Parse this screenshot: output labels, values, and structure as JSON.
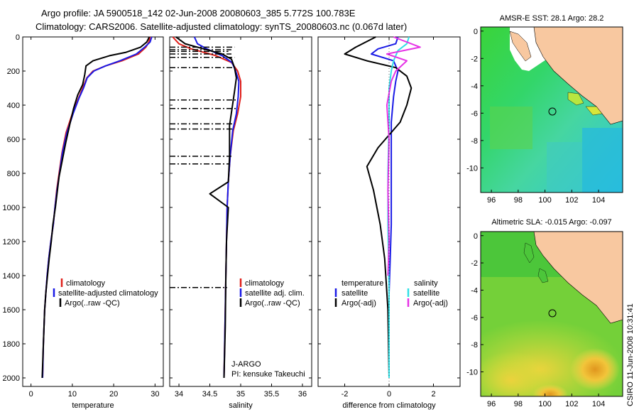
{
  "title": {
    "line1": "Argo profile: JA 5900518_142 02-Jun-2008 20080603_385 5.772S 100.783E",
    "line2": "Climatology: CARS2006. Satellite-adjusted climatology: synTS_20080603.nc (0.067d later)"
  },
  "colors": {
    "climatology": "#e0201b",
    "satellite": "#1a1ae6",
    "argo": "#000000",
    "sat_salinity": "#33e0e6",
    "argo_adj_salinity": "#e633e6"
  },
  "depth_axis": {
    "ylim": [
      0,
      2050
    ],
    "ticks": [
      0,
      200,
      400,
      600,
      800,
      1000,
      1200,
      1400,
      1600,
      1800,
      2000
    ]
  },
  "panels": {
    "temperature": {
      "xlabel": "temperature",
      "xlim": [
        -2,
        32
      ],
      "xticks": [
        0,
        10,
        20,
        30
      ],
      "legend": [
        "climatology",
        "satellite-adjusted climatology",
        "Argo(..raw -QC)"
      ]
    },
    "salinity": {
      "xlabel": "salinity",
      "xlim": [
        33.85,
        36.15
      ],
      "xticks": [
        34,
        34.5,
        35,
        35.5,
        36
      ],
      "legend": [
        "climatology",
        "satellite adj. clim.",
        "Argo(..raw -QC)"
      ],
      "annotation_line1": "J-ARGO",
      "annotation_line2": "PI: kensuke Takeuchi"
    },
    "difference": {
      "xlabel": "difference from climatology",
      "xlim": [
        -3.2,
        3.2
      ],
      "xticks": [
        -2,
        0,
        2
      ],
      "legend_temperature_head": "temperature",
      "legend_salinity_head": "salinity",
      "legend_temperature": [
        "satellite",
        "Argo(-adj)"
      ],
      "legend_salinity": [
        "satellite",
        "Argo(-adj)"
      ]
    }
  },
  "chart_data": [
    {
      "type": "line",
      "id": "temperature",
      "xlabel": "temperature",
      "ylabel": "",
      "xlim": [
        -2,
        32
      ],
      "ylim": [
        0,
        2050
      ],
      "y_reversed": true,
      "series": [
        {
          "name": "climatology",
          "x": [
            28.8,
            28.5,
            27.8,
            26,
            22,
            18,
            15,
            13.5,
            12.5,
            11.5,
            10,
            8.5,
            7.5,
            6.8,
            6.2,
            5.8,
            5.4,
            4.8,
            4.3,
            3.9,
            3.6,
            3.3,
            3.0,
            2.8
          ],
          "y": [
            0,
            30,
            60,
            100,
            140,
            170,
            200,
            240,
            300,
            360,
            450,
            560,
            680,
            800,
            900,
            1000,
            1100,
            1200,
            1300,
            1400,
            1500,
            1600,
            1800,
            2000
          ]
        },
        {
          "name": "satellite-adjusted climatology",
          "x": [
            29.2,
            28.8,
            27.5,
            25.5,
            21.5,
            18,
            15.2,
            13.6,
            12.7,
            11.6,
            10.2,
            8.7,
            7.6,
            6.9,
            6.3,
            5.8,
            5.4,
            4.8,
            4.3,
            3.9,
            3.6,
            3.3,
            3.0,
            2.8
          ],
          "y": [
            0,
            30,
            60,
            100,
            140,
            170,
            200,
            240,
            300,
            360,
            450,
            560,
            680,
            800,
            900,
            1000,
            1100,
            1200,
            1300,
            1400,
            1500,
            1600,
            1800,
            2000
          ]
        },
        {
          "name": "Argo(..raw -QC)",
          "x": [
            28.6,
            28,
            26.5,
            23,
            19,
            15,
            13.3,
            13,
            12.5,
            11.3,
            10.3,
            9.5,
            8.4,
            7.6,
            6.8,
            6.3,
            5.9,
            5.3,
            4.9,
            4.4,
            4.0,
            3.6,
            3.3,
            3.0,
            2.7
          ],
          "y": [
            0,
            30,
            60,
            90,
            110,
            140,
            170,
            220,
            280,
            340,
            420,
            500,
            620,
            720,
            820,
            920,
            1000,
            1100,
            1200,
            1300,
            1400,
            1500,
            1600,
            1800,
            2000
          ]
        }
      ]
    },
    {
      "type": "line",
      "id": "salinity",
      "xlabel": "salinity",
      "ylabel": "",
      "xlim": [
        33.85,
        36.15
      ],
      "ylim": [
        0,
        2050
      ],
      "y_reversed": true,
      "series": [
        {
          "name": "climatology",
          "x": [
            33.9,
            34.0,
            34.2,
            34.6,
            34.85,
            34.95,
            35.0,
            35.0,
            34.95,
            34.88,
            34.83,
            34.8,
            34.78,
            34.77,
            34.76,
            34.75,
            34.74,
            34.73
          ],
          "y": [
            0,
            40,
            70,
            110,
            150,
            200,
            260,
            350,
            450,
            550,
            700,
            850,
            1000,
            1200,
            1400,
            1600,
            1800,
            2000
          ]
        },
        {
          "name": "satellite adj. clim.",
          "x": [
            34.25,
            34.3,
            34.45,
            34.7,
            34.86,
            34.92,
            34.97,
            34.96,
            34.93,
            34.87,
            34.83,
            34.8,
            34.78,
            34.77,
            34.76,
            34.75,
            34.74,
            34.73
          ],
          "y": [
            0,
            40,
            70,
            110,
            150,
            200,
            260,
            350,
            450,
            550,
            700,
            850,
            1000,
            1200,
            1400,
            1600,
            1800,
            2000
          ]
        },
        {
          "name": "Argo(..raw -QC)",
          "x": [
            33.95,
            34.1,
            34.4,
            34.7,
            34.85,
            34.9,
            34.93,
            34.9,
            34.86,
            34.82,
            34.82,
            34.8,
            34.5,
            34.8,
            34.77,
            34.76,
            34.75,
            34.73
          ],
          "y": [
            0,
            40,
            70,
            100,
            130,
            180,
            240,
            320,
            420,
            520,
            700,
            850,
            920,
            1000,
            1200,
            1400,
            1700,
            2000
          ]
        }
      ]
    },
    {
      "type": "line",
      "id": "difference",
      "xlabel": "difference from climatology",
      "ylabel": "",
      "xlim": [
        -3.2,
        3.2
      ],
      "ylim": [
        0,
        2050
      ],
      "y_reversed": true,
      "series": [
        {
          "name": "temperature satellite",
          "x": [
            0.4,
            0.3,
            -0.5,
            -0.8,
            0.2,
            0.4,
            0.3,
            0.2,
            0.1,
            0.1,
            0.1,
            0.1,
            0.05,
            0.0,
            0.0,
            0.0
          ],
          "y": [
            0,
            40,
            70,
            100,
            140,
            200,
            260,
            350,
            500,
            700,
            900,
            1100,
            1300,
            1500,
            1800,
            2000
          ]
        },
        {
          "name": "temperature Argo(-adj)",
          "x": [
            -0.6,
            -1.5,
            -2.0,
            -1.0,
            0.3,
            0.8,
            1.0,
            0.8,
            0.5,
            -0.5,
            -1.0,
            -0.7,
            -0.4,
            -0.2,
            -0.05,
            0.0
          ],
          "y": [
            0,
            60,
            100,
            140,
            180,
            230,
            300,
            400,
            500,
            650,
            760,
            900,
            1100,
            1300,
            1600,
            2000
          ]
        },
        {
          "name": "salinity satellite",
          "x": [
            0.9,
            0.8,
            0.4,
            0.2,
            0.1,
            0.0,
            0.0,
            -0.05,
            -0.05,
            0.0,
            0.0
          ],
          "y": [
            0,
            40,
            80,
            140,
            200,
            300,
            500,
            800,
            1100,
            1500,
            2000
          ]
        },
        {
          "name": "salinity Argo(-adj)",
          "x": [
            0.2,
            1.4,
            -0.1,
            0.8,
            0.3,
            0.1,
            -0.1,
            0.0,
            -0.05,
            0.0,
            -0.05
          ],
          "y": [
            0,
            60,
            100,
            140,
            200,
            260,
            400,
            600,
            900,
            1200,
            1400
          ]
        }
      ]
    }
  ],
  "maps": {
    "sst": {
      "title": "AMSR-E SST: 28.1 Argo: 28.2",
      "xticks": [
        96,
        98,
        100,
        102,
        104
      ],
      "yticks": [
        0,
        -2,
        -4,
        -6,
        -8,
        -10
      ],
      "xlim": [
        95.2,
        105.8
      ],
      "ylim": [
        -11.8,
        0.3
      ],
      "profile_lon": 100.783,
      "profile_lat": -5.772
    },
    "sla": {
      "title": "Altimetric SLA: -0.015 Argo: -0.097",
      "xticks": [
        96,
        98,
        100,
        102,
        104
      ],
      "yticks": [
        0,
        -2,
        -4,
        -6,
        -8,
        -10
      ],
      "xlim": [
        95.2,
        105.8
      ],
      "ylim": [
        -11.8,
        0.3
      ],
      "profile_lon": 100.783,
      "profile_lat": -5.772
    }
  },
  "footer": "CSIRO 11-Jun-2008 10:31:41"
}
